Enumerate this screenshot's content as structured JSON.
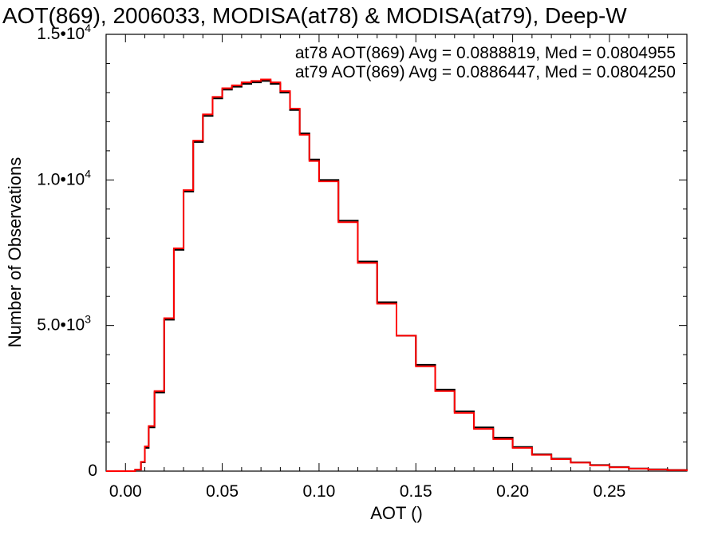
{
  "chart_data": {
    "type": "line",
    "title": "AOT(869), 2006033, MODISA(at78) & MODISA(at79), Deep-W",
    "xlabel": "AOT ()",
    "ylabel": "Number of Observations",
    "xlim": [
      -0.01,
      0.29
    ],
    "ylim": [
      0,
      15000
    ],
    "x_ticks": [
      {
        "value": 0.0,
        "label": "0.00"
      },
      {
        "value": 0.05,
        "label": "0.05"
      },
      {
        "value": 0.1,
        "label": "0.10"
      },
      {
        "value": 0.15,
        "label": "0.15"
      },
      {
        "value": 0.2,
        "label": "0.20"
      },
      {
        "value": 0.25,
        "label": "0.25"
      }
    ],
    "y_ticks": [
      {
        "value": 0,
        "label": "0",
        "sup": ""
      },
      {
        "value": 5000,
        "label": "5.0•10",
        "sup": "3"
      },
      {
        "value": 10000,
        "label": "1.0•10",
        "sup": "4"
      },
      {
        "value": 15000,
        "label": "1.5•10",
        "sup": "4"
      }
    ],
    "grid": false,
    "legend_placement": "top-right",
    "series": [
      {
        "name": "at78 AOT(869) Avg = 0.0888819, Med = 0.0804955",
        "color": "#000000",
        "x": [
          -0.01,
          0.0,
          0.005,
          0.008,
          0.01,
          0.012,
          0.015,
          0.02,
          0.025,
          0.03,
          0.035,
          0.04,
          0.045,
          0.05,
          0.055,
          0.06,
          0.065,
          0.07,
          0.075,
          0.08,
          0.085,
          0.09,
          0.095,
          0.1,
          0.11,
          0.12,
          0.13,
          0.14,
          0.15,
          0.16,
          0.17,
          0.18,
          0.19,
          0.2,
          0.21,
          0.22,
          0.23,
          0.24,
          0.25,
          0.26,
          0.27,
          0.28,
          0.29
        ],
        "y": [
          0,
          0,
          50,
          300,
          800,
          1500,
          2700,
          5200,
          7600,
          9600,
          11300,
          12200,
          12800,
          13100,
          13200,
          13300,
          13350,
          13400,
          13300,
          13000,
          12400,
          11600,
          10700,
          10000,
          8600,
          7200,
          5800,
          4650,
          3650,
          2800,
          2050,
          1500,
          1150,
          830,
          580,
          430,
          300,
          210,
          140,
          90,
          60,
          40,
          0
        ]
      },
      {
        "name": "at79 AOT(869) Avg = 0.0886447, Med = 0.0804250",
        "color": "#ff0000",
        "x": [
          -0.01,
          0.0,
          0.005,
          0.008,
          0.01,
          0.012,
          0.015,
          0.02,
          0.025,
          0.03,
          0.035,
          0.04,
          0.045,
          0.05,
          0.055,
          0.06,
          0.065,
          0.07,
          0.075,
          0.08,
          0.085,
          0.09,
          0.095,
          0.1,
          0.11,
          0.12,
          0.13,
          0.14,
          0.15,
          0.16,
          0.17,
          0.18,
          0.19,
          0.2,
          0.21,
          0.22,
          0.23,
          0.24,
          0.25,
          0.26,
          0.27,
          0.28,
          0.29
        ],
        "y": [
          0,
          0,
          50,
          320,
          850,
          1550,
          2750,
          5250,
          7650,
          9650,
          11350,
          12250,
          12850,
          13150,
          13250,
          13350,
          13400,
          13450,
          13350,
          13050,
          12450,
          11550,
          10650,
          9950,
          8550,
          7150,
          5750,
          4650,
          3600,
          2750,
          2000,
          1450,
          1100,
          800,
          560,
          410,
          290,
          200,
          130,
          85,
          55,
          35,
          0
        ]
      }
    ]
  }
}
